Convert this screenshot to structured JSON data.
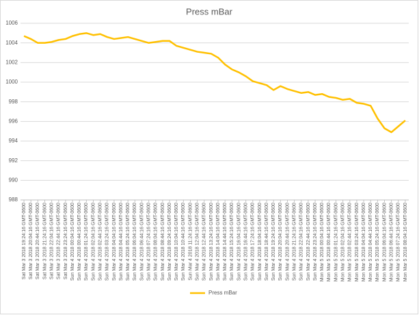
{
  "chart_data": {
    "type": "line",
    "title": "Press mBar",
    "categories": [
      "Sat Mar 3 2018 19:24:16 GMT-0600",
      "Sat Mar 3 2018 20:04:16 GMT-0600",
      "Sat Mar 3 2018 20:44:16 GMT-0600",
      "Sat Mar 3 2018 21:24:16 GMT-0600",
      "Sat Mar 3 2018 22:04:16 GMT-0600",
      "Sat Mar 3 2018 22:44:16 GMT-0600",
      "Sat Mar 3 2018 23:24:16 GMT-0600",
      "Sun Mar 4 2018 00:04:16 GMT-0600",
      "Sun Mar 4 2018 00:44:16 GMT-0600",
      "Sun Mar 4 2018 01:24:16 GMT-0600",
      "Sun Mar 4 2018 02:04:16 GMT-0600",
      "Sun Mar 4 2018 02:44:16 GMT-0600",
      "Sun Mar 4 2018 03:24:16 GMT-0600",
      "Sun Mar 4 2018 04:04:16 GMT-0600",
      "Sun Mar 4 2018 04:44:16 GMT-0600",
      "Sun Mar 4 2018 05:24:16 GMT-0600",
      "Sun Mar 4 2018 06:04:16 GMT-0600",
      "Sun Mar 4 2018 06:44:16 GMT-0600",
      "Sun Mar 4 2018 07:24:16 GMT-0600",
      "Sun Mar 4 2018 08:04:16 GMT-0600",
      "Sun Mar 4 2018 08:44:16 GMT-0600",
      "Sun Mar 4 2018 09:24:16 GMT-0600",
      "Sun Mar 4 2018 10:04:16 GMT-0600",
      "Sun Mar 4 2018 10:44:16 GMT-0600",
      "Sun Mar 4 2018 11:24:16 GMT-0600",
      "Sun Mar 4 2018 12:04:16 GMT-0600",
      "Sun Mar 4 2018 12:44:16 GMT-0600",
      "Sun Mar 4 2018 13:24:16 GMT-0600",
      "Sun Mar 4 2018 14:04:16 GMT-0600",
      "Sun Mar 4 2018 14:44:16 GMT-0600",
      "Sun Mar 4 2018 15:24:16 GMT-0600",
      "Sun Mar 4 2018 16:04:16 GMT-0600",
      "Sun Mar 4 2018 16:44:16 GMT-0600",
      "Sun Mar 4 2018 17:24:16 GMT-0600",
      "Sun Mar 4 2018 18:04:16 GMT-0600",
      "Sun Mar 4 2018 18:44:16 GMT-0600",
      "Sun Mar 4 2018 19:24:16 GMT-0600",
      "Sun Mar 4 2018 20:04:16 GMT-0600",
      "Sun Mar 4 2018 20:44:16 GMT-0600",
      "Sun Mar 4 2018 21:24:16 GMT-0600",
      "Sun Mar 4 2018 22:04:16 GMT-0600",
      "Sun Mar 4 2018 22:44:16 GMT-0600",
      "Sun Mar 4 2018 23:24:16 GMT-0600",
      "Mon Mar 5 2018 00:04:16 GMT-0600",
      "Mon Mar 5 2018 00:44:16 GMT-0600",
      "Mon Mar 5 2018 01:24:16 GMT-0600",
      "Mon Mar 5 2018 02:04:16 GMT-0600",
      "Mon Mar 5 2018 02:44:16 GMT-0600",
      "Mon Mar 5 2018 03:24:16 GMT-0600",
      "Mon Mar 5 2018 04:04:16 GMT-0600",
      "Mon Mar 5 2018 04:44:16 GMT-0600",
      "Mon Mar 5 2018 05:24:16 GMT-0600",
      "Mon Mar 5 2018 06:04:16 GMT-0600",
      "Mon Mar 5 2018 06:44:16 GMT-0600",
      "Mon Mar 5 2018 07:24:16 GMT-0600",
      "Mon Mar 5 2018 08:04:16 GMT-0600"
    ],
    "series": [
      {
        "name": "Press mBar",
        "color": "#ffc000",
        "values": [
          1004.7,
          1004.4,
          1004.0,
          1004.0,
          1004.1,
          1004.3,
          1004.4,
          1004.7,
          1004.9,
          1005.0,
          1004.8,
          1004.9,
          1004.6,
          1004.4,
          1004.5,
          1004.6,
          1004.4,
          1004.2,
          1004.0,
          1004.1,
          1004.2,
          1004.2,
          1003.7,
          1003.5,
          1003.3,
          1003.1,
          1003.0,
          1002.9,
          1002.5,
          1001.8,
          1001.3,
          1001.0,
          1000.6,
          1000.1,
          999.9,
          999.7,
          999.2,
          999.6,
          999.3,
          999.1,
          998.9,
          999.0,
          998.7,
          998.8,
          998.5,
          998.4,
          998.2,
          998.3,
          997.9,
          997.8,
          997.6,
          996.3,
          995.3,
          994.9,
          995.5,
          996.1
        ]
      }
    ],
    "ylim": [
      988,
      1006
    ],
    "yticks": [
      988,
      990,
      992,
      994,
      996,
      998,
      1000,
      1002,
      1004,
      1006
    ],
    "grid": true,
    "legend": "bottom"
  }
}
